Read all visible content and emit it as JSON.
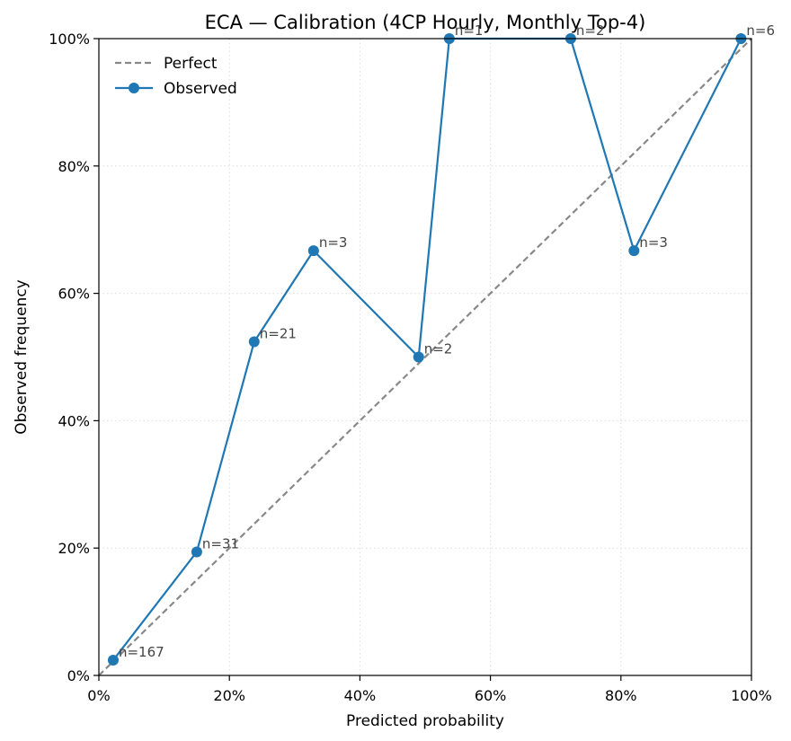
{
  "chart_data": {
    "type": "line",
    "title": "ECA — Calibration (4CP Hourly, Monthly Top-4)",
    "xlabel": "Predicted probability",
    "ylabel": "Observed frequency",
    "xlim": [
      0,
      1
    ],
    "ylim": [
      0,
      1
    ],
    "xticks": [
      0,
      0.2,
      0.4,
      0.6,
      0.8,
      1.0
    ],
    "yticks": [
      0,
      0.2,
      0.4,
      0.6,
      0.8,
      1.0
    ],
    "xtick_labels": [
      "0%",
      "20%",
      "40%",
      "60%",
      "80%",
      "100%"
    ],
    "ytick_labels": [
      "0%",
      "20%",
      "40%",
      "60%",
      "80%",
      "100%"
    ],
    "grid": true,
    "legend_position": "top-left",
    "series": [
      {
        "name": "Perfect",
        "style": "dashed",
        "color": "#888888",
        "x": [
          0,
          1
        ],
        "y": [
          0,
          1
        ]
      },
      {
        "name": "Observed",
        "style": "solid-markers",
        "color": "#1f77b4",
        "x": [
          0.022,
          0.15,
          0.238,
          0.329,
          0.49,
          0.537,
          0.723,
          0.82,
          0.984
        ],
        "y": [
          0.024,
          0.194,
          0.524,
          0.667,
          0.5,
          1.0,
          1.0,
          0.667,
          1.0
        ],
        "labels": [
          "n=167",
          "n=31",
          "n=21",
          "n=3",
          "n=2",
          "n=1",
          "n=2",
          "n=3",
          "n=6"
        ]
      }
    ]
  }
}
